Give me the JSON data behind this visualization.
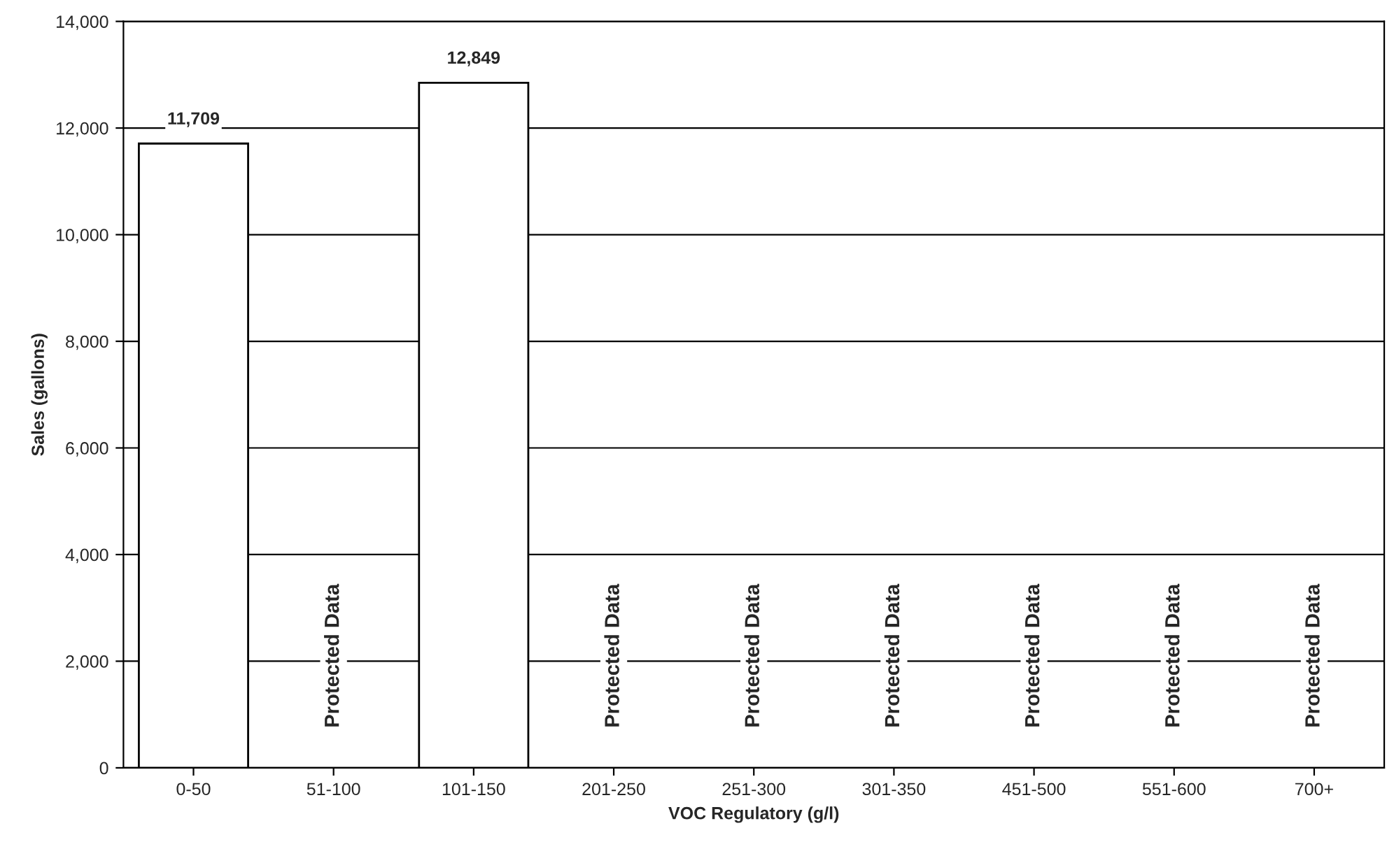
{
  "chart_data": {
    "type": "bar",
    "xlabel": "VOC Regulatory (g/l)",
    "ylabel": "Sales (gallons)",
    "categories": [
      "0-50",
      "51-100",
      "101-150",
      "201-250",
      "251-300",
      "301-350",
      "451-500",
      "551-600",
      "700+"
    ],
    "values": [
      11709,
      null,
      12849,
      null,
      null,
      null,
      null,
      null,
      null
    ],
    "value_labels": [
      "11,709",
      null,
      "12,849",
      null,
      null,
      null,
      null,
      null,
      null
    ],
    "color": "#ffffff",
    "ylim": [
      0,
      14000
    ],
    "yticks": [
      {
        "value": 0,
        "label": "0"
      },
      {
        "value": 2000,
        "label": "2,000"
      },
      {
        "value": 4000,
        "label": "4,000"
      },
      {
        "value": 6000,
        "label": "6,000"
      },
      {
        "value": 8000,
        "label": "8,000"
      },
      {
        "value": 10000,
        "label": "10,000"
      },
      {
        "value": 12000,
        "label": "12,000"
      },
      {
        "value": 14000,
        "label": "14,000"
      }
    ],
    "grid": "y",
    "annotations": [
      "Protected Data",
      "Protected Data",
      "Protected Data",
      "Protected Data",
      "Protected Data",
      "Protected Data",
      "Protected Data"
    ]
  }
}
